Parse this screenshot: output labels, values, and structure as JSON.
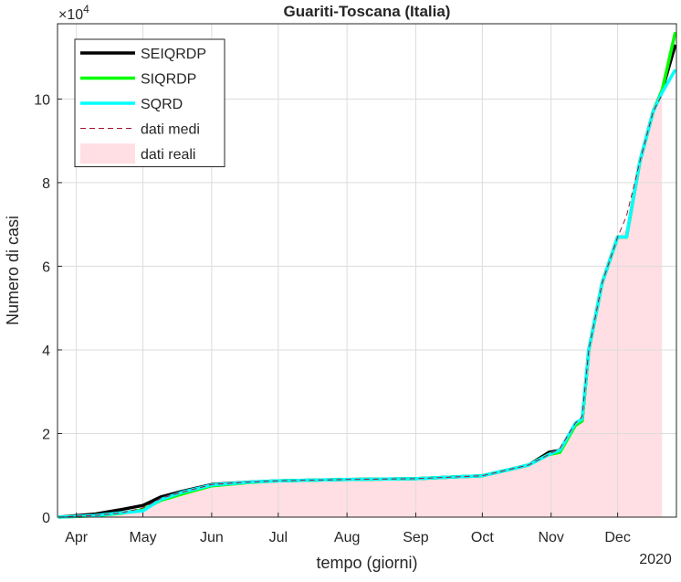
{
  "chart_data": {
    "type": "line",
    "title": "Guariti-Toscana (Italia)",
    "x_label": "tempo (giorni)",
    "y_label": "Numero di casi",
    "y_scale_label": {
      "base": "×10",
      "exponent": "4"
    },
    "x_annotation": "2020",
    "grid": true,
    "legend": "upper left",
    "xlim": [
      83.5,
      362.5
    ],
    "xticks": [
      {
        "value": 92,
        "label": "Apr"
      },
      {
        "value": 122,
        "label": "May"
      },
      {
        "value": 153,
        "label": "Jun"
      },
      {
        "value": 183,
        "label": "Jul"
      },
      {
        "value": 214,
        "label": "Aug"
      },
      {
        "value": 245,
        "label": "Sep"
      },
      {
        "value": 275,
        "label": "Oct"
      },
      {
        "value": 306,
        "label": "Nov"
      },
      {
        "value": 336,
        "label": "Dec"
      }
    ],
    "ylim": [
      0,
      118000
    ],
    "yticks": [
      {
        "value": 0,
        "label": "0"
      },
      {
        "value": 20000,
        "label": "2"
      },
      {
        "value": 40000,
        "label": "4"
      },
      {
        "value": 60000,
        "label": "6"
      },
      {
        "value": 80000,
        "label": "8"
      },
      {
        "value": 100000,
        "label": "10"
      }
    ],
    "x": [
      84,
      100,
      112,
      122,
      130,
      140,
      153,
      170,
      183,
      214,
      245,
      275,
      288,
      296,
      305,
      310,
      317,
      320,
      323,
      329,
      336,
      340,
      346,
      352,
      356,
      362
    ],
    "series": [
      {
        "name": "SEIQRDP",
        "color": "#000000",
        "style": "solid",
        "values": [
          0,
          700,
          1800,
          2800,
          4800,
          6200,
          7800,
          8400,
          8700,
          9000,
          9200,
          9900,
          11500,
          12500,
          15500,
          16000,
          22000,
          23000,
          40000,
          56000,
          67000,
          67000,
          85000,
          97000,
          102000,
          113000
        ]
      },
      {
        "name": "SIQRDP",
        "color": "#00ff00",
        "style": "solid",
        "values": [
          0,
          300,
          900,
          1800,
          4000,
          5600,
          7500,
          8300,
          8700,
          9000,
          9200,
          9900,
          11500,
          12500,
          15000,
          15500,
          22000,
          23000,
          40000,
          56000,
          67000,
          67000,
          85000,
          97000,
          102000,
          116000
        ]
      },
      {
        "name": "SQRD",
        "color": "#00ffff",
        "style": "solid",
        "values": [
          0,
          400,
          1000,
          1500,
          4200,
          6000,
          7700,
          8400,
          8700,
          9000,
          9200,
          9900,
          11500,
          12500,
          15000,
          16000,
          22500,
          23500,
          40000,
          56000,
          67000,
          67000,
          85000,
          97000,
          101500,
          107000
        ]
      },
      {
        "name": "dati medi",
        "color": "#a2142f",
        "style": "dashed",
        "values": [
          0,
          400,
          1000,
          2200,
          4500,
          6000,
          7800,
          8400,
          8700,
          9000,
          9200,
          9900,
          11500,
          12500,
          15000,
          16500,
          22500,
          24000,
          40000,
          56000,
          67000,
          72000,
          85000,
          97000,
          101000,
          null
        ]
      },
      {
        "name": "dati reali",
        "color": "#ffdfe3",
        "style": "area",
        "values": [
          0,
          400,
          1000,
          2200,
          4500,
          6000,
          7800,
          8400,
          8700,
          9000,
          9200,
          9900,
          11500,
          12500,
          15000,
          16500,
          22500,
          24000,
          40000,
          56000,
          67000,
          69000,
          85000,
          97000,
          101000,
          null
        ]
      }
    ]
  }
}
